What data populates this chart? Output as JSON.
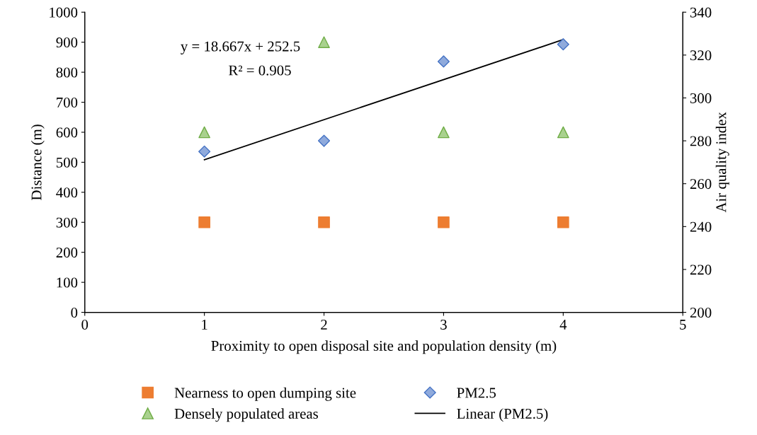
{
  "chart_data": {
    "type": "scatter",
    "xlabel": "Proximity to open disposal site and population density (m)",
    "ylabel": "Distance (m)",
    "y2label": "Air quality index",
    "x": [
      1,
      2,
      3,
      4
    ],
    "series": [
      {
        "name": "Nearness to open dumping site",
        "color": "#ed7d31",
        "marker": "square",
        "values": [
          300,
          300,
          300,
          300
        ]
      },
      {
        "name": "Densely populated areas",
        "color": "#a9d18e",
        "marker": "triangle",
        "values": [
          600,
          900,
          600,
          600
        ]
      },
      {
        "name": "PM2.5",
        "color": "#8faadc",
        "marker": "diamond",
        "axis": "y2",
        "values": [
          275,
          280,
          317,
          325
        ]
      },
      {
        "name": "Linear (PM2.5)",
        "type": "line",
        "color": "#000000",
        "marker": "none",
        "line_style": "solid",
        "axis": "y2",
        "x": [
          1,
          4
        ],
        "values": [
          271.2,
          327.2
        ]
      }
    ],
    "xlim": [
      0,
      5
    ],
    "xticks": [
      0,
      1,
      2,
      3,
      4,
      5
    ],
    "ylim": [
      0,
      1000
    ],
    "yticks": [
      0,
      100,
      200,
      300,
      400,
      500,
      600,
      700,
      800,
      900,
      1000
    ],
    "y2lim": [
      200,
      340
    ],
    "y2ticks": [
      200,
      220,
      240,
      260,
      280,
      300,
      320,
      340
    ],
    "annotations": [
      "y = 18.667x + 252.5",
      "R² = 0.905"
    ],
    "grid": false,
    "legend": "bottom"
  }
}
